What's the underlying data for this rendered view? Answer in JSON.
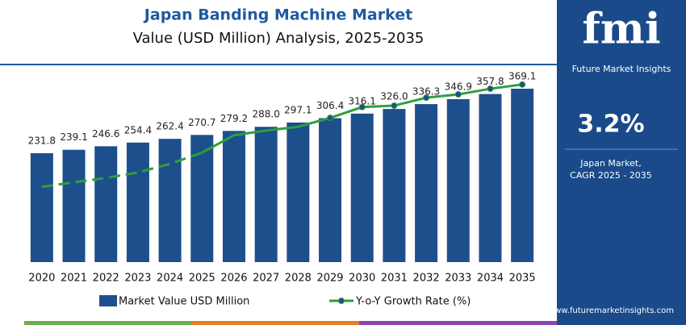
{
  "chart_data": {
    "type": "bar",
    "title": "Japan Banding Machine Market",
    "subtitle": "Value (USD Million) Analysis, 2025-2035",
    "categories": [
      "2020",
      "2021",
      "2022",
      "2023",
      "2024",
      "2025",
      "2026",
      "2027",
      "2028",
      "2029",
      "2030",
      "2031",
      "2032",
      "2033",
      "2034",
      "2035"
    ],
    "series": [
      {
        "name": "Market Value USD Million",
        "type": "bar",
        "color": "#1d4f8c",
        "values": [
          231.8,
          239.1,
          246.6,
          254.4,
          262.4,
          270.7,
          279.2,
          288.0,
          297.1,
          306.4,
          316.1,
          326.0,
          336.3,
          346.9,
          357.8,
          369.1
        ],
        "value_labels": [
          "231.8",
          "239.1",
          "246.6",
          "254.4",
          "262.4",
          "270.7",
          "279.2",
          "288.0",
          "297.1",
          "306.4",
          "316.1",
          "326.0",
          "336.3",
          "346.9",
          "357.8",
          "369.1"
        ]
      },
      {
        "name": "Y-o-Y Growth Rate (%)",
        "type": "line",
        "color": "#2e9e3e",
        "axis": "y2",
        "values": [
          160,
          170,
          179,
          191,
          209,
          233,
          270,
          280,
          288,
          307,
          330,
          333,
          350,
          357,
          369,
          378
        ]
      }
    ],
    "ylim": [
      0,
      400
    ],
    "y2lim": [
      0,
      400
    ]
  },
  "sidebar": {
    "logo": "fmi",
    "brand": "Future Market Insights",
    "value": "3.2%",
    "label_lines": [
      "Japan Market,",
      "CAGR 2025 - 2035"
    ],
    "url": "www.futuremarketinsights.com"
  }
}
